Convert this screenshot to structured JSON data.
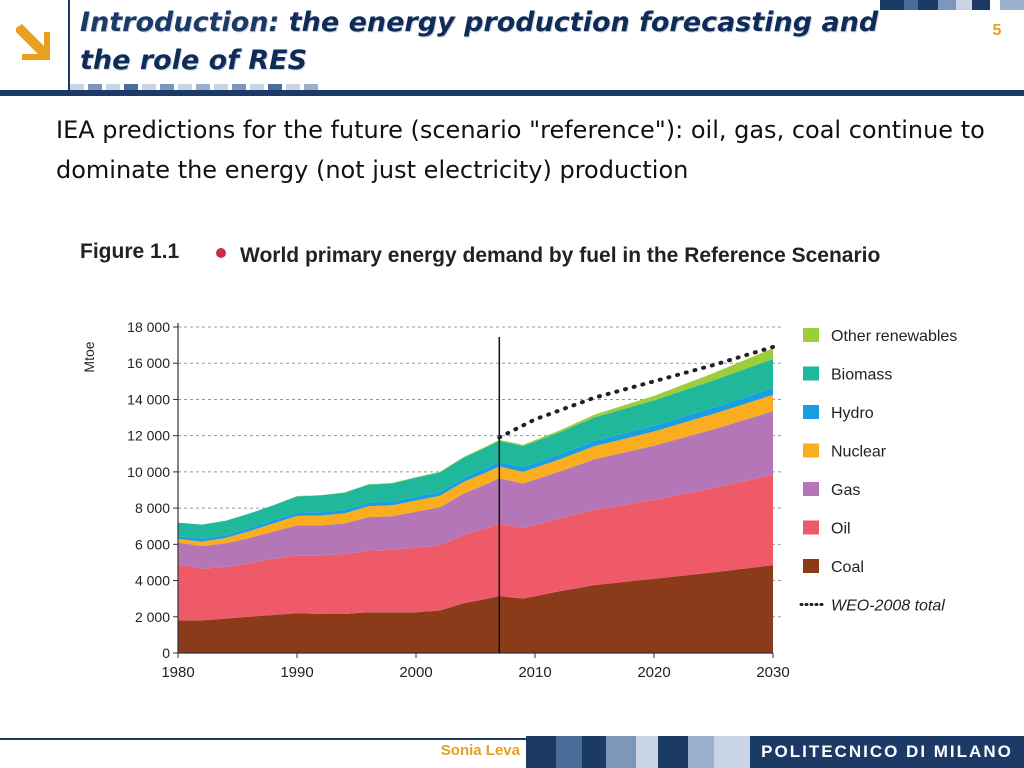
{
  "header": {
    "title_part1": "Introduction: ",
    "title_part2": "the energy production forecasting and the role of RES",
    "page_number": "5",
    "accent_color": "#e8a020",
    "brand_color": "#1c3a66"
  },
  "body": {
    "text": "IEA predictions for the future (scenario \"reference\"): oil, gas, coal continue to dominate the energy (not just electricity) production"
  },
  "figure": {
    "label": "Figure 1.1",
    "title": "World primary energy demand by fuel in the Reference Scenario"
  },
  "chart_data": {
    "type": "area",
    "ylabel": "Mtoe",
    "xlabel": "",
    "ylim": [
      0,
      18000
    ],
    "xlim": [
      1980,
      2030
    ],
    "y_ticks": [
      "0",
      "2 000",
      "4 000",
      "6 000",
      "8 000",
      "10 000",
      "12 000",
      "14 000",
      "16 000",
      "18 000"
    ],
    "x_ticks": [
      "1980",
      "1990",
      "2000",
      "2010",
      "2020",
      "2030"
    ],
    "grid": "horizontal dashed",
    "legend_position": "right",
    "marker_year": 2007,
    "x": [
      1980,
      1982,
      1984,
      1986,
      1988,
      1990,
      1992,
      1994,
      1996,
      1998,
      2000,
      2002,
      2004,
      2006,
      2007,
      2009,
      2012,
      2015,
      2020,
      2025,
      2030
    ],
    "series": [
      {
        "name": "Coal",
        "color": "#8c3b1a",
        "values": [
          1800,
          1800,
          1900,
          2000,
          2100,
          2200,
          2150,
          2150,
          2250,
          2250,
          2250,
          2350,
          2750,
          3000,
          3150,
          3000,
          3400,
          3750,
          4100,
          4450,
          4850
        ]
      },
      {
        "name": "Oil",
        "color": "#ef5a68",
        "values": [
          3100,
          2850,
          2850,
          2950,
          3100,
          3200,
          3250,
          3300,
          3400,
          3450,
          3550,
          3600,
          3750,
          3900,
          4000,
          3900,
          4000,
          4150,
          4350,
          4650,
          5000
        ]
      },
      {
        "name": "Gas",
        "color": "#b476b6",
        "values": [
          1200,
          1250,
          1300,
          1400,
          1500,
          1650,
          1650,
          1700,
          1850,
          1850,
          2000,
          2100,
          2300,
          2450,
          2500,
          2450,
          2600,
          2800,
          3000,
          3250,
          3500
        ]
      },
      {
        "name": "Nuclear",
        "color": "#f9ad1f",
        "values": [
          200,
          250,
          300,
          380,
          450,
          520,
          540,
          560,
          600,
          610,
          620,
          630,
          650,
          650,
          650,
          650,
          680,
          720,
          780,
          850,
          900
        ]
      },
      {
        "name": "Hydro",
        "color": "#1a9ee1",
        "values": [
          150,
          160,
          160,
          170,
          180,
          180,
          190,
          190,
          200,
          200,
          210,
          210,
          220,
          240,
          250,
          260,
          270,
          290,
          320,
          350,
          380
        ]
      },
      {
        "name": "Biomass",
        "color": "#1fb89a",
        "values": [
          750,
          780,
          790,
          800,
          820,
          900,
          920,
          950,
          1000,
          1000,
          1050,
          1080,
          1110,
          1150,
          1160,
          1170,
          1220,
          1300,
          1400,
          1500,
          1600
        ]
      },
      {
        "name": "Other renewables",
        "color": "#9ccd3a",
        "values": [
          0,
          0,
          0,
          0,
          10,
          20,
          20,
          20,
          20,
          30,
          30,
          30,
          40,
          50,
          60,
          70,
          100,
          150,
          250,
          400,
          600
        ]
      }
    ],
    "total_series": {
      "name": "WEO-2008 total",
      "style": "dotted",
      "x": [
        2007,
        2010,
        2015,
        2020,
        2025,
        2030
      ],
      "values": [
        11900,
        12900,
        14100,
        15000,
        15900,
        16900
      ]
    }
  },
  "footer": {
    "author": "Sonia Leva",
    "institution": "POLITECNICO DI MILANO"
  }
}
